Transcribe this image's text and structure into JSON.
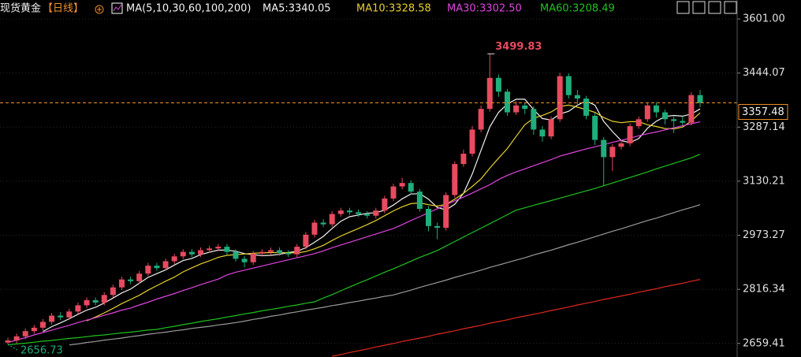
{
  "chart_data": {
    "type": "candlestick",
    "instrument": "现货黄金",
    "period": "【日线】",
    "indicator": "MA(5,10,30,60,100,200)",
    "ylim": [
      2620,
      3656
    ],
    "yticks": [
      {
        "value": 3601,
        "label": "3601.00"
      },
      3444.07,
      3287.14,
      3130.21,
      2973.27,
      2816.34,
      2659.41
    ],
    "grid": true,
    "up_color": "#e84a5f",
    "down_color": "#1fae7c",
    "max_label": 3499.83,
    "min_label": 2656.73,
    "last_price": 3357.48,
    "last_price_color": "#f0902a",
    "candles": {
      "open": [
        2662,
        2668,
        2680,
        2695,
        2705,
        2722,
        2740,
        2735,
        2752,
        2770,
        2785,
        2778,
        2800,
        2822,
        2845,
        2840,
        2862,
        2885,
        2878,
        2898,
        2912,
        2925,
        2918,
        2930,
        2935,
        2940,
        2925,
        2905,
        2895,
        2920,
        2925,
        2930,
        2922,
        2918,
        2940,
        2975,
        3010,
        3005,
        3035,
        3045,
        3040,
        3035,
        3030,
        3045,
        3080,
        3115,
        3125,
        3100,
        3050,
        3000,
        2995,
        3090,
        3180,
        3210,
        3280,
        3340,
        3430,
        3390,
        3330,
        3350,
        3340,
        3280,
        3260,
        3310,
        3435,
        3380,
        3370,
        3320,
        3250,
        3200,
        3230,
        3240,
        3290,
        3310,
        3350,
        3330,
        3310,
        3305,
        3300,
        3380
      ],
      "high": [
        2676,
        2688,
        2703,
        2713,
        2730,
        2748,
        2750,
        2760,
        2778,
        2793,
        2793,
        2808,
        2830,
        2853,
        2853,
        2870,
        2893,
        2893,
        2906,
        2920,
        2933,
        2933,
        2938,
        2943,
        2948,
        2948,
        2933,
        2913,
        2928,
        2933,
        2938,
        2938,
        2930,
        2948,
        2983,
        3018,
        3020,
        3043,
        3053,
        3053,
        3048,
        3043,
        3053,
        3088,
        3123,
        3140,
        3133,
        3108,
        3058,
        3010,
        3098,
        3188,
        3222,
        3290,
        3350,
        3499.83,
        3440,
        3398,
        3362,
        3358,
        3348,
        3290,
        3318,
        3445,
        3443,
        3395,
        3378,
        3328,
        3258,
        3238,
        3250,
        3298,
        3318,
        3358,
        3358,
        3338,
        3318,
        3318,
        3388,
        3395
      ],
      "low": [
        2656.73,
        2660,
        2672,
        2687,
        2697,
        2714,
        2727,
        2727,
        2744,
        2762,
        2770,
        2770,
        2792,
        2814,
        2832,
        2832,
        2854,
        2870,
        2870,
        2890,
        2904,
        2910,
        2910,
        2922,
        2927,
        2917,
        2897,
        2880,
        2887,
        2912,
        2917,
        2914,
        2910,
        2910,
        2932,
        2967,
        2997,
        2997,
        3027,
        3032,
        3027,
        3022,
        3022,
        3037,
        3072,
        3107,
        3092,
        3042,
        2985,
        2962,
        2987,
        3082,
        3172,
        3202,
        3272,
        3332,
        3375,
        3320,
        3322,
        3325,
        3265,
        3245,
        3252,
        3302,
        3370,
        3355,
        3310,
        3235,
        3118,
        3160,
        3222,
        3232,
        3282,
        3302,
        3315,
        3295,
        3270,
        3292,
        3292,
        3345
      ],
      "close": [
        2668,
        2680,
        2695,
        2705,
        2722,
        2740,
        2735,
        2752,
        2770,
        2785,
        2778,
        2800,
        2822,
        2845,
        2840,
        2862,
        2885,
        2878,
        2898,
        2912,
        2925,
        2918,
        2930,
        2935,
        2940,
        2925,
        2905,
        2895,
        2920,
        2925,
        2930,
        2922,
        2918,
        2940,
        2975,
        3010,
        3005,
        3035,
        3045,
        3040,
        3035,
        3030,
        3045,
        3080,
        3115,
        3125,
        3100,
        3050,
        3000,
        2995,
        3090,
        3180,
        3210,
        3280,
        3340,
        3430,
        3390,
        3330,
        3350,
        3340,
        3280,
        3260,
        3310,
        3435,
        3380,
        3370,
        3320,
        3250,
        3200,
        3230,
        3240,
        3290,
        3310,
        3350,
        3330,
        3310,
        3305,
        3300,
        3380,
        3357.48
      ]
    },
    "series": [
      {
        "name": "MA5:3340.05",
        "color": "#f2f2f2",
        "values": [
          null,
          null,
          null,
          null,
          2694,
          2708,
          2719,
          2731,
          2744,
          2756,
          2764,
          2777,
          2791,
          2806,
          2817,
          2834,
          2851,
          2862,
          2873,
          2887,
          2900,
          2906,
          2917,
          2924,
          2930,
          2930,
          2927,
          2920,
          2917,
          2914,
          2915,
          2918,
          2923,
          2927,
          2937,
          2953,
          2970,
          2993,
          3014,
          3027,
          3032,
          3037,
          3039,
          3046,
          3061,
          3079,
          3093,
          3094,
          3078,
          3054,
          3047,
          3063,
          3095,
          3151,
          3220,
          3288,
          3330,
          3354,
          3368,
          3368,
          3338,
          3312,
          3308,
          3325,
          3333,
          3351,
          3363,
          3351,
          3304,
          3274,
          3248,
          3242,
          3254,
          3284,
          3304,
          3318,
          3321,
          3319,
          3325,
          3340.05
        ]
      },
      {
        "name": "MA10:3328.58",
        "color": "#e6cf2e",
        "values": [
          null,
          null,
          null,
          null,
          null,
          null,
          null,
          null,
          null,
          2725,
          2736,
          2748,
          2761,
          2775,
          2787,
          2799,
          2814,
          2827,
          2840,
          2852,
          2867,
          2879,
          2890,
          2899,
          2909,
          2915,
          2917,
          2919,
          2921,
          2922,
          2923,
          2923,
          2922,
          2922,
          2926,
          2934,
          2944,
          2958,
          2971,
          2982,
          2993,
          3004,
          3016,
          3030,
          3044,
          3056,
          3065,
          3067,
          3062,
          3058,
          3063,
          3078,
          3095,
          3115,
          3137,
          3168,
          3197,
          3225,
          3260,
          3294,
          3313,
          3321,
          3331,
          3347,
          3351,
          3345,
          3338,
          3330,
          3315,
          3304,
          3300,
          3303,
          3303,
          3294,
          3289,
          3283,
          3282,
          3287,
          3305,
          3328.58
        ]
      },
      {
        "name": "MA30:3302.50",
        "color": "#e044e0",
        "values": [
          2662,
          2669,
          2676,
          2684,
          2691,
          2698,
          2705,
          2712,
          2720,
          2727,
          2734,
          2741,
          2748,
          2756,
          2762,
          2771,
          2779,
          2788,
          2796,
          2804,
          2813,
          2821,
          2830,
          2838,
          2846,
          2858,
          2866,
          2872,
          2878,
          2884,
          2890,
          2896,
          2902,
          2908,
          2914,
          2920,
          2928,
          2937,
          2945,
          2953,
          2961,
          2969,
          2977,
          2985,
          2993,
          3004,
          3016,
          3027,
          3039,
          3050,
          3062,
          3073,
          3084,
          3096,
          3108,
          3120,
          3135,
          3147,
          3157,
          3166,
          3175,
          3184,
          3193,
          3203,
          3210,
          3217,
          3224,
          3230,
          3236,
          3243,
          3249,
          3255,
          3262,
          3268,
          3273,
          3279,
          3285,
          3291,
          3297,
          3302.5
        ]
      },
      {
        "name": "MA60:3208.49",
        "color": "#1fc21f",
        "values": [
          2655,
          2658,
          2660,
          2663,
          2666,
          2668,
          2671,
          2674,
          2676,
          2679,
          2682,
          2684,
          2687,
          2690,
          2692,
          2695,
          2698,
          2700,
          2705,
          2709,
          2714,
          2718,
          2723,
          2727,
          2731,
          2736,
          2740,
          2745,
          2749,
          2754,
          2758,
          2762,
          2767,
          2771,
          2776,
          2780,
          2791,
          2801,
          2812,
          2823,
          2834,
          2844,
          2855,
          2866,
          2876,
          2887,
          2898,
          2909,
          2919,
          2929,
          2942,
          2955,
          2968,
          2981,
          2994,
          3007,
          3020,
          3033,
          3046,
          3053,
          3060,
          3067,
          3074,
          3081,
          3088,
          3095,
          3102,
          3109,
          3117,
          3125,
          3133,
          3141,
          3149,
          3157,
          3166,
          3174,
          3182,
          3190,
          3198,
          3208.49
        ]
      },
      {
        "color": "#9a9a9a",
        "values": [
          null,
          null,
          null,
          null,
          null,
          null,
          null,
          2655,
          2658,
          2662,
          2665,
          2669,
          2672,
          2675,
          2679,
          2682,
          2686,
          2689,
          2692,
          2696,
          2699,
          2703,
          2706,
          2709,
          2713,
          2716,
          2720,
          2724,
          2729,
          2733,
          2738,
          2742,
          2747,
          2751,
          2756,
          2760,
          2764,
          2769,
          2773,
          2778,
          2782,
          2787,
          2791,
          2796,
          2800,
          2807,
          2814,
          2822,
          2829,
          2836,
          2843,
          2851,
          2858,
          2865,
          2872,
          2880,
          2887,
          2894,
          2901,
          2908,
          2916,
          2923,
          2930,
          2938,
          2946,
          2953,
          2961,
          2969,
          2977,
          2985,
          2992,
          3000,
          3008,
          3016,
          3023,
          3031,
          3039,
          3047,
          3054,
          3062
        ]
      },
      {
        "color": "#e0281e",
        "values": [
          null,
          null,
          null,
          null,
          null,
          null,
          null,
          null,
          null,
          null,
          null,
          null,
          null,
          null,
          null,
          null,
          null,
          null,
          null,
          null,
          null,
          null,
          null,
          null,
          null,
          null,
          null,
          null,
          null,
          null,
          null,
          null,
          null,
          null,
          null,
          null,
          null,
          2622,
          2627,
          2633,
          2638,
          2643,
          2649,
          2654,
          2659,
          2665,
          2670,
          2675,
          2680,
          2686,
          2691,
          2696,
          2702,
          2707,
          2712,
          2718,
          2723,
          2728,
          2734,
          2739,
          2744,
          2749,
          2755,
          2760,
          2765,
          2771,
          2776,
          2781,
          2787,
          2792,
          2797,
          2802,
          2808,
          2813,
          2818,
          2824,
          2829,
          2834,
          2840,
          2845
        ]
      }
    ]
  }
}
